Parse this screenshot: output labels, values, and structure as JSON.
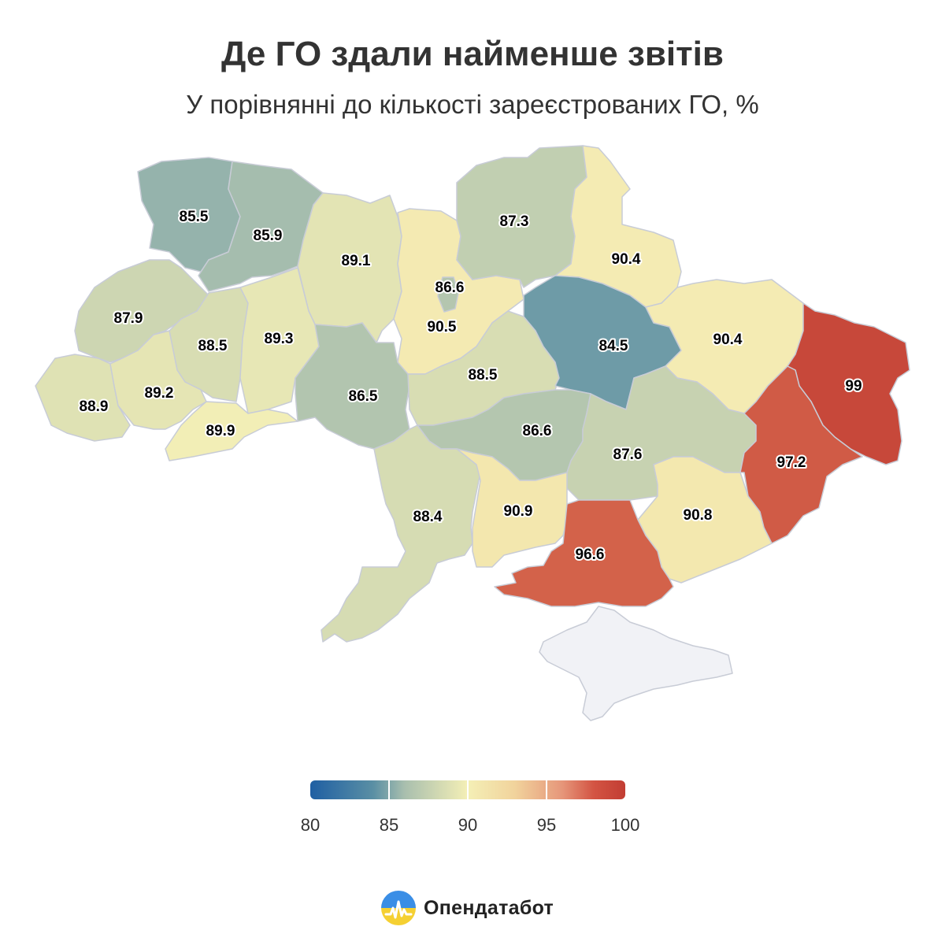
{
  "title": "Де ГО здали найменше звітів",
  "subtitle": "У порівнянні до кількості зареєстрованих ГО, %",
  "colors": {
    "scale": [
      "#1f5fa3",
      "#5a8fa4",
      "#a9bfae",
      "#f4efb6",
      "#f1d39c",
      "#e6967a",
      "#c23d33"
    ],
    "no_data": "#f1f2f6",
    "border": "#c8ccd6"
  },
  "chart_data": {
    "type": "choropleth",
    "unit": "%",
    "regions": [
      {
        "id": "volyn",
        "value": 85.5,
        "label": "85.5"
      },
      {
        "id": "rivne",
        "value": 85.9,
        "label": "85.9"
      },
      {
        "id": "zhytomyr",
        "value": 89.1,
        "label": "89.1"
      },
      {
        "id": "kyiv-city",
        "value": 86.6,
        "label": "86.6"
      },
      {
        "id": "kyiv-oblast",
        "value": 90.5,
        "label": "90.5"
      },
      {
        "id": "chernihiv",
        "value": 87.3,
        "label": "87.3"
      },
      {
        "id": "sumy",
        "value": 90.4,
        "label": "90.4"
      },
      {
        "id": "lviv",
        "value": 87.9,
        "label": "87.9"
      },
      {
        "id": "ternopil",
        "value": 88.5,
        "label": "88.5"
      },
      {
        "id": "khmelnytskyi",
        "value": 89.3,
        "label": "89.3"
      },
      {
        "id": "zakarpattia",
        "value": 88.9,
        "label": "88.9"
      },
      {
        "id": "ivano-frankivsk",
        "value": 89.2,
        "label": "89.2"
      },
      {
        "id": "chernivtsi",
        "value": 89.9,
        "label": "89.9"
      },
      {
        "id": "vinnytsia",
        "value": 86.5,
        "label": "86.5"
      },
      {
        "id": "cherkasy",
        "value": 88.5,
        "label": "88.5"
      },
      {
        "id": "poltava",
        "value": 84.5,
        "label": "84.5"
      },
      {
        "id": "kharkiv",
        "value": 90.4,
        "label": "90.4"
      },
      {
        "id": "luhansk",
        "value": 99,
        "label": "99"
      },
      {
        "id": "kirovohrad",
        "value": 86.6,
        "label": "86.6"
      },
      {
        "id": "dnipropetrovsk",
        "value": 87.6,
        "label": "87.6"
      },
      {
        "id": "donetsk",
        "value": 97.2,
        "label": "97.2"
      },
      {
        "id": "odesa",
        "value": 88.4,
        "label": "88.4"
      },
      {
        "id": "mykolaiv",
        "value": 90.9,
        "label": "90.9"
      },
      {
        "id": "zaporizhzhia",
        "value": 90.8,
        "label": "90.8"
      },
      {
        "id": "kherson",
        "value": 96.6,
        "label": "96.6"
      },
      {
        "id": "crimea",
        "value": null,
        "label": ""
      }
    ],
    "legend": {
      "min": 80,
      "max": 100,
      "ticks": [
        "80",
        "85",
        "90",
        "95",
        "100"
      ],
      "tick_values": [
        80,
        85,
        90,
        95,
        100
      ]
    }
  },
  "brand": {
    "name": "Опендатабот",
    "icon": "opendatabot-logo-icon"
  }
}
